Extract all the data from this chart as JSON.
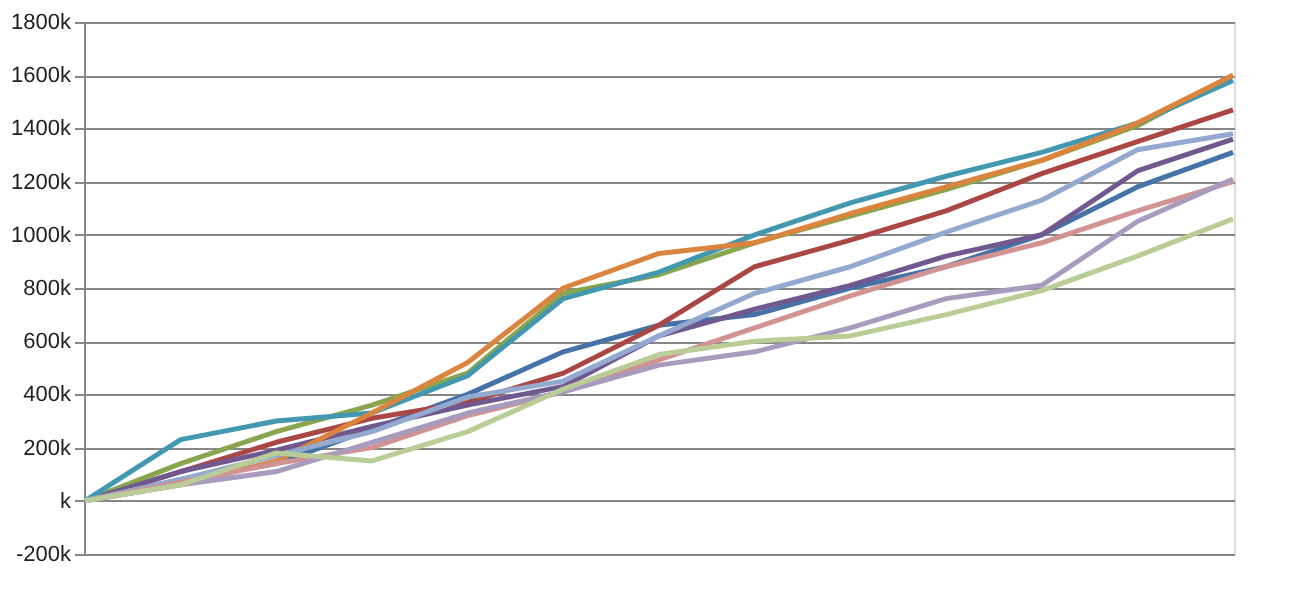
{
  "chart_data": {
    "type": "line",
    "relative": false,
    "categories": [
      null,
      null,
      null,
      null,
      null,
      null,
      null,
      null,
      null,
      null,
      null,
      null,
      null
    ],
    "ylim": [
      -200,
      1800
    ],
    "yticks": [
      {
        "value": -200,
        "label": "-200k"
      },
      {
        "value": 0,
        "label": "k"
      },
      {
        "value": 200,
        "label": "200k"
      },
      {
        "value": 400,
        "label": "400k"
      },
      {
        "value": 600,
        "label": "600k"
      },
      {
        "value": 800,
        "label": "800k"
      },
      {
        "value": 1000,
        "label": "1000k"
      },
      {
        "value": 1200,
        "label": "1200k"
      },
      {
        "value": 1400,
        "label": "1400k"
      },
      {
        "value": 1600,
        "label": "1600k"
      },
      {
        "value": 1800,
        "label": "1800k"
      }
    ],
    "grid": "y",
    "legend": false,
    "marker": "none",
    "line_style": "solid",
    "tick_labels": "y",
    "series": [
      {
        "color": "#4572a7",
        "values": [
          0,
          80,
          140,
          270,
          400,
          560,
          660,
          700,
          800,
          880,
          1000,
          1180,
          1310
        ]
      },
      {
        "color": "#aa4643",
        "values": [
          0,
          110,
          220,
          310,
          370,
          480,
          660,
          880,
          980,
          1090,
          1230,
          1350,
          1470
        ]
      },
      {
        "color": "#89a54e",
        "values": [
          0,
          140,
          260,
          360,
          480,
          780,
          850,
          970,
          1070,
          1170,
          1280,
          1410,
          1600
        ]
      },
      {
        "color": "#71588f",
        "values": [
          0,
          110,
          190,
          280,
          360,
          430,
          620,
          720,
          810,
          920,
          1000,
          1240,
          1360
        ]
      },
      {
        "color": "#4198af",
        "values": [
          0,
          230,
          300,
          330,
          470,
          760,
          860,
          1000,
          1120,
          1220,
          1310,
          1420,
          1580
        ]
      },
      {
        "color": "#db843d",
        "values": [
          0,
          60,
          150,
          330,
          520,
          800,
          930,
          970,
          1080,
          1180,
          1280,
          1420,
          1600
        ]
      },
      {
        "color": "#93a9cf",
        "values": [
          0,
          80,
          170,
          260,
          390,
          450,
          620,
          780,
          880,
          1010,
          1130,
          1320,
          1380
        ]
      },
      {
        "color": "#d19392",
        "values": [
          0,
          70,
          140,
          200,
          320,
          410,
          530,
          650,
          770,
          880,
          970,
          1090,
          1200
        ]
      },
      {
        "color": "#a99bbd",
        "values": [
          0,
          60,
          110,
          220,
          330,
          410,
          510,
          560,
          650,
          760,
          810,
          1050,
          1210
        ]
      },
      {
        "color": "#b9cd96",
        "values": [
          0,
          60,
          180,
          150,
          260,
          420,
          550,
          600,
          620,
          700,
          790,
          920,
          1060
        ]
      }
    ]
  }
}
